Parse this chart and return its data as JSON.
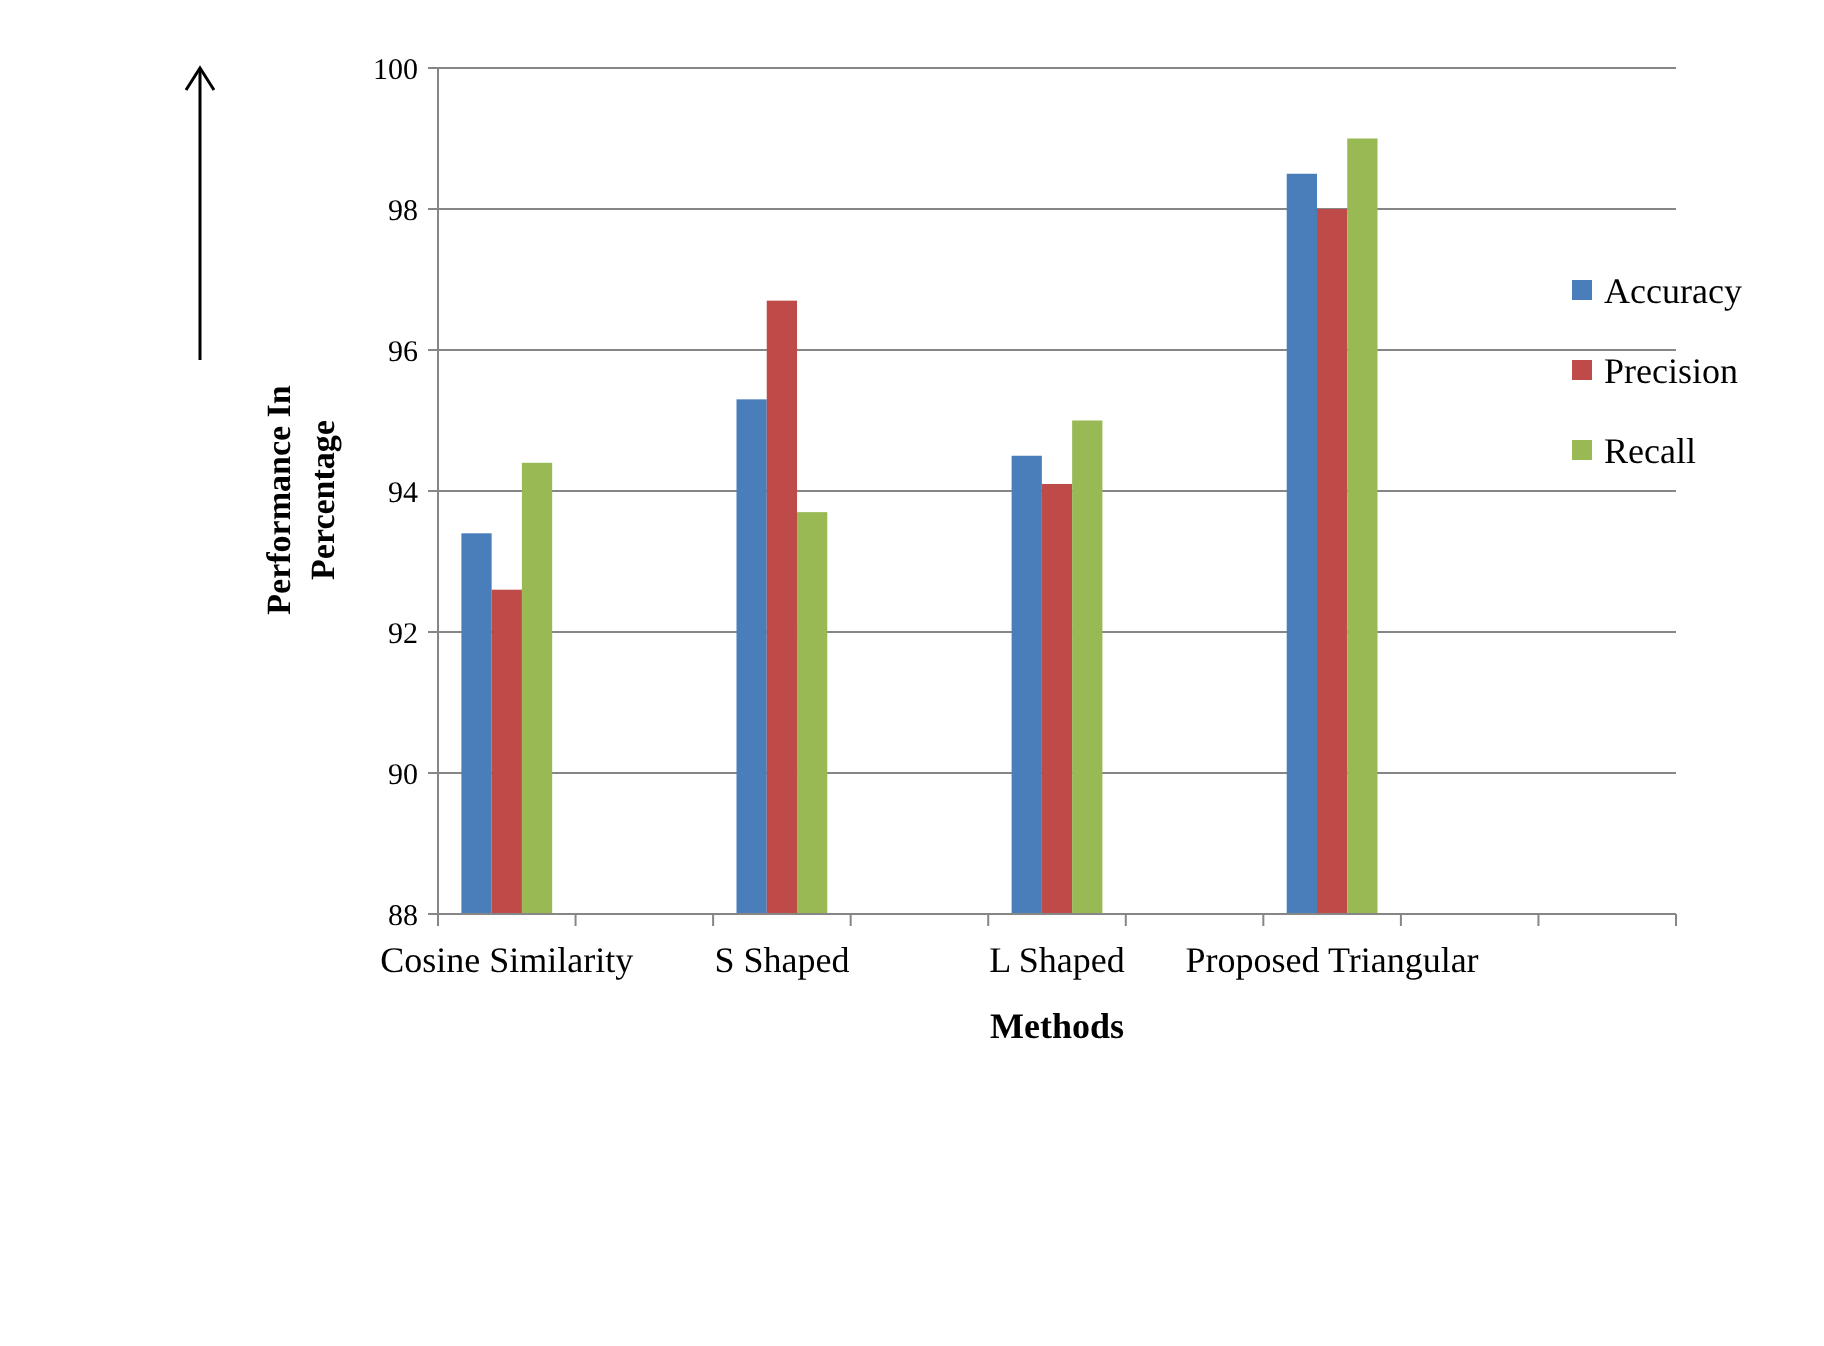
{
  "chart_data": {
    "type": "bar",
    "xlabel": "Methods",
    "ylabel": "Performance In\nPercentage",
    "categories": [
      "Cosine Similarity",
      null,
      "S Shaped",
      null,
      "L Shaped",
      null,
      "Proposed Triangular",
      null,
      null
    ],
    "series": [
      {
        "name": "Accuracy",
        "color": "#4a7ebb",
        "values": [
          93.4,
          null,
          95.3,
          null,
          94.5,
          null,
          98.5,
          null,
          null
        ]
      },
      {
        "name": "Precision",
        "color": "#be4b48",
        "values": [
          92.6,
          null,
          96.7,
          null,
          94.1,
          null,
          98.0,
          null,
          null
        ]
      },
      {
        "name": "Recall",
        "color": "#98b954",
        "values": [
          94.4,
          null,
          93.7,
          null,
          95.0,
          null,
          99.0,
          null,
          null
        ]
      }
    ],
    "ylim": [
      88,
      100
    ],
    "yticks": [
      88,
      90,
      92,
      94,
      96,
      98,
      100
    ],
    "grid": "y",
    "legend": "right"
  }
}
